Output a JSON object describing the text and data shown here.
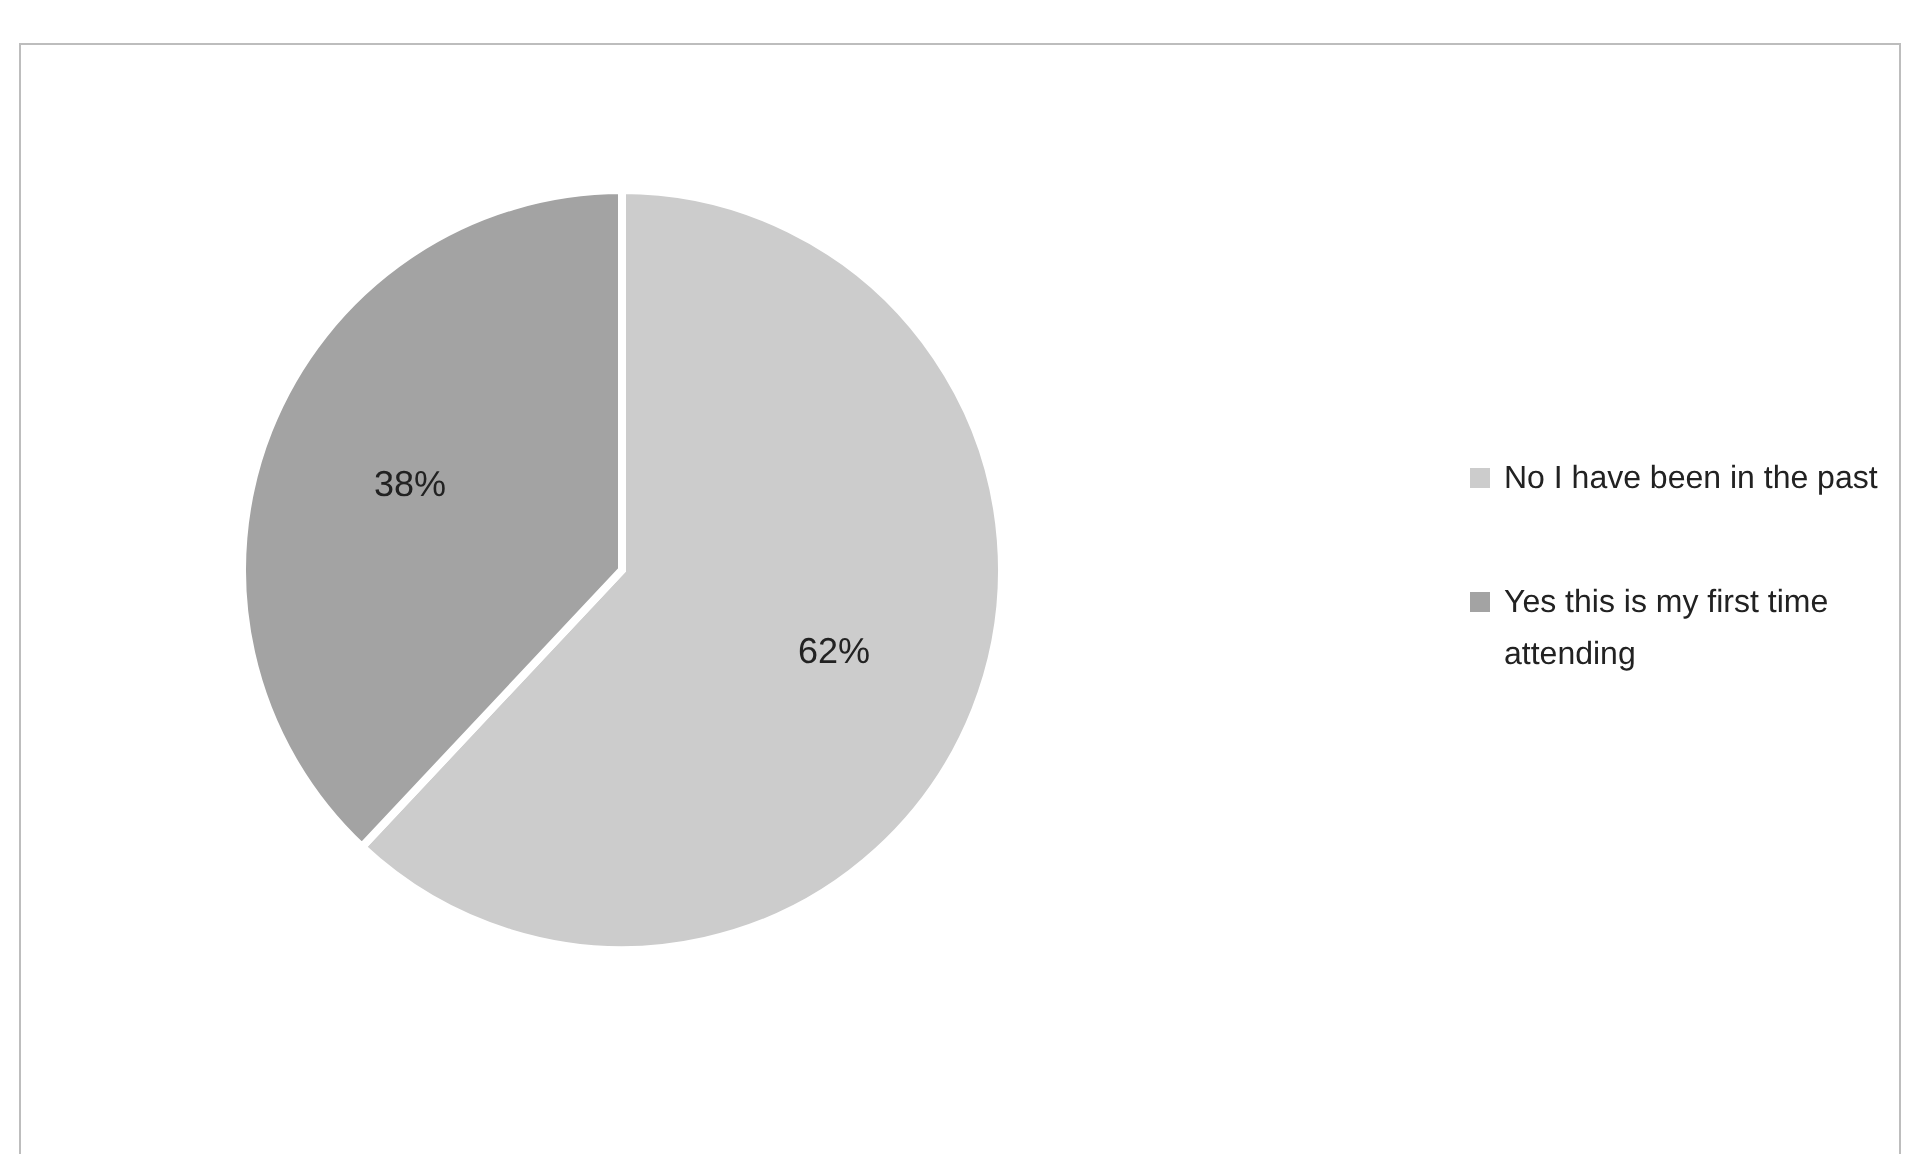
{
  "chart_data": {
    "type": "pie",
    "categories": [
      "No I have been in the past",
      "Yes this is my first time attending"
    ],
    "values": [
      62,
      38
    ],
    "colors": [
      "#cccccc",
      "#a3a3a3"
    ],
    "value_labels": [
      "62%",
      "38%"
    ],
    "legend": "right"
  }
}
